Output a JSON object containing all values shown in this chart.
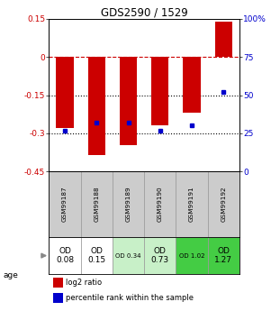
{
  "title": "GDS2590 / 1529",
  "samples": [
    "GSM99187",
    "GSM99188",
    "GSM99189",
    "GSM99190",
    "GSM99191",
    "GSM99192"
  ],
  "log2_ratio": [
    -0.28,
    -0.385,
    -0.345,
    -0.27,
    -0.22,
    0.14
  ],
  "percentile_rank": [
    27,
    32,
    32,
    27,
    30,
    52
  ],
  "od_values": [
    "OD\n0.08",
    "OD\n0.15",
    "OD 0.34",
    "OD\n0.73",
    "OD 1.02",
    "OD\n1.27"
  ],
  "od_fontsize_small": [
    false,
    false,
    true,
    false,
    true,
    false
  ],
  "od_bg_colors": [
    "#ffffff",
    "#ffffff",
    "#c8f0c8",
    "#c8f0c8",
    "#44cc44",
    "#44cc44"
  ],
  "ylim_left": [
    -0.45,
    0.15
  ],
  "ylim_right": [
    0,
    100
  ],
  "yticks_left": [
    0.15,
    0.0,
    -0.15,
    -0.3,
    -0.45
  ],
  "yticks_left_labels": [
    "0.15",
    "0",
    "-0.15",
    "-0.3",
    "-0.45"
  ],
  "yticks_right": [
    100,
    75,
    50,
    25,
    0
  ],
  "yticks_right_labels": [
    "100%",
    "75",
    "50",
    "25",
    "0"
  ],
  "bar_color": "#cc0000",
  "dot_color": "#0000cc",
  "zero_line_color": "#cc0000",
  "dotted_line_color": "#000000",
  "legend_red": "log2 ratio",
  "legend_blue": "percentile rank within the sample",
  "bar_width": 0.55,
  "gray_bg": "#cccccc",
  "cell_edge": "#999999"
}
